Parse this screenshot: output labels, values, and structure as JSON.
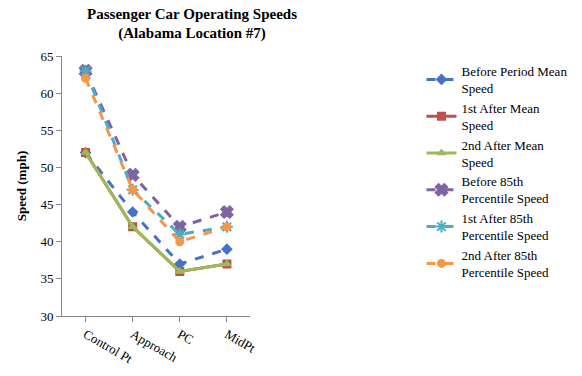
{
  "chart_data": {
    "type": "line",
    "title": "Passenger Car Operating Speeds\n(Alabama Location #7)",
    "y_label": "Speed (mph)",
    "categories": [
      "Control Pt",
      "Approach",
      "PC",
      "MidPt"
    ],
    "series": [
      {
        "name": "Before Period Mean Speed",
        "color": "#4472c4",
        "marker": "diamond",
        "line_style": "dash",
        "values": [
          52,
          44,
          37,
          39
        ]
      },
      {
        "name": "1st After Mean Speed",
        "color": "#c0504d",
        "marker": "square",
        "line_style": "solid",
        "values": [
          52,
          42,
          36,
          37
        ]
      },
      {
        "name": "2nd After Mean Speed",
        "color": "#9bbb59",
        "marker": "triangle-up",
        "line_style": "solid",
        "values": [
          52,
          42,
          36,
          37
        ]
      },
      {
        "name": "Before 85th Percentile Speed",
        "color": "#8064a2",
        "marker": "x",
        "line_style": "dash",
        "values": [
          63,
          49,
          42,
          44
        ]
      },
      {
        "name": "1st After 85th Percentile Speed",
        "color": "#4bacc6",
        "marker": "asterisk-open",
        "line_style": "dash",
        "values": [
          63,
          47,
          41,
          42
        ]
      },
      {
        "name": "2nd After 85th Percentile Speed",
        "color": "#f79646",
        "marker": "circle",
        "line_style": "dash",
        "values": [
          62,
          47,
          40,
          42
        ]
      }
    ],
    "ylim": [
      30,
      65
    ],
    "yticks": [
      30,
      35,
      40,
      45,
      50,
      55,
      60,
      65
    ],
    "grid": false,
    "legend": "right"
  }
}
